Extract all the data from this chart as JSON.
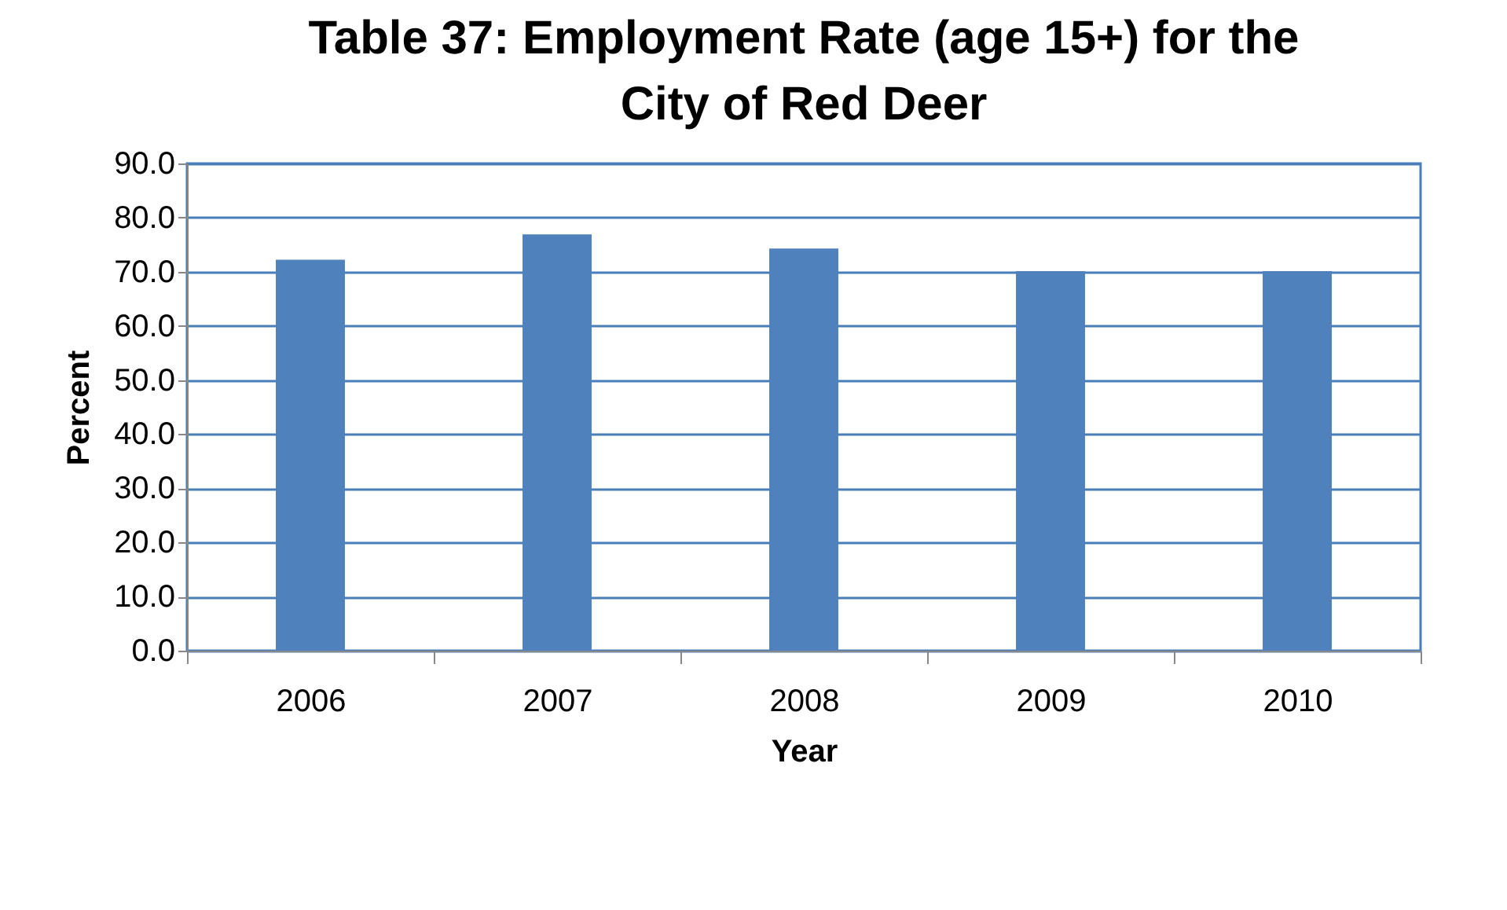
{
  "chart_data": {
    "type": "bar",
    "title": [
      "Table 37:  Employment Rate (age 15+) for the",
      "City of Red Deer"
    ],
    "xlabel": "Year",
    "ylabel": "Percent",
    "categories": [
      "2006",
      "2007",
      "2008",
      "2009",
      "2010"
    ],
    "values": [
      72.2,
      76.9,
      74.3,
      70.1,
      70.1
    ],
    "color": "#4f81bd",
    "ylim": [
      0,
      90
    ],
    "yticks": [
      {
        "value": 0,
        "label": "0.0"
      },
      {
        "value": 10,
        "label": "10.0"
      },
      {
        "value": 20,
        "label": "20.0"
      },
      {
        "value": 30,
        "label": "30.0"
      },
      {
        "value": 40,
        "label": "40.0"
      },
      {
        "value": 50,
        "label": "50.0"
      },
      {
        "value": 60,
        "label": "60.0"
      },
      {
        "value": 70,
        "label": "70.0"
      },
      {
        "value": 80,
        "label": "80.0"
      },
      {
        "value": 90,
        "label": "90.0"
      }
    ],
    "grid": "y",
    "legend": false
  }
}
